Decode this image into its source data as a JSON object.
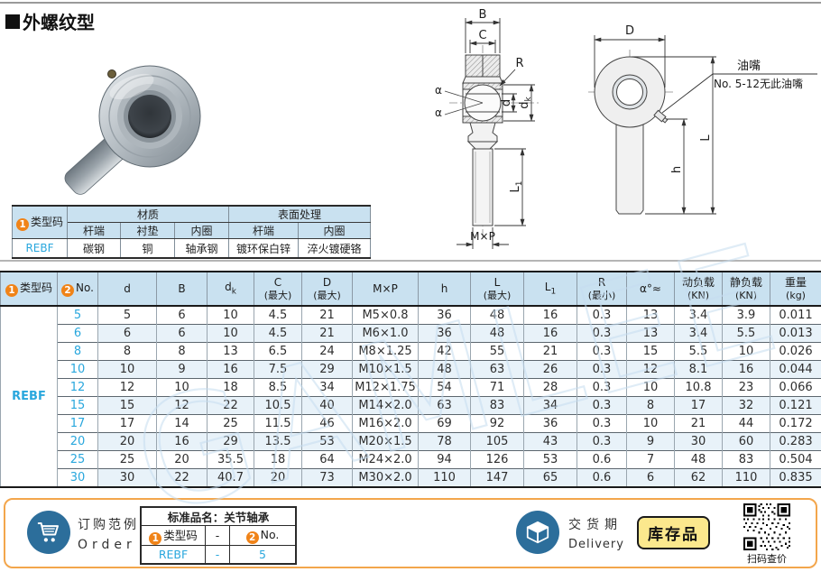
{
  "title": "外螺纹型",
  "watermark": "GAMLEE",
  "material_table": {
    "badge": "1",
    "type_code_label": "类型码",
    "material_header": "材质",
    "surface_header": "表面处理",
    "sub_headers": [
      "杆端",
      "衬垫",
      "内圈",
      "杆端",
      "内圈"
    ],
    "type_code": "REBF",
    "values": [
      "碳钢",
      "铜",
      "轴承钢",
      "镀环保白锌",
      "淬火镀硬铬"
    ]
  },
  "diagram": {
    "side": {
      "B": "B",
      "C": "C",
      "R": "R",
      "alpha": "α",
      "alpha2": "α",
      "d": "d",
      "dk_main": "d",
      "dk_sub": "k",
      "L1_main": "L",
      "L1_sub": "1",
      "MxP": "M×P"
    },
    "front": {
      "D": "D",
      "h": "h",
      "L": "L",
      "grease_title": "油嘴",
      "grease_note": "No. 5-12无此油嘴"
    }
  },
  "main_table": {
    "type_code": "REBF",
    "headers": [
      {
        "badge": "1",
        "text": "类型码"
      },
      {
        "badge": "2",
        "text": "No."
      },
      {
        "text": "d"
      },
      {
        "text": "B"
      },
      {
        "text": "d",
        "sub": "k"
      },
      {
        "text": "C",
        "line2": "(最大)"
      },
      {
        "text": "D",
        "line2": "(最大)"
      },
      {
        "text": "M×P"
      },
      {
        "text": "h"
      },
      {
        "text": "L",
        "line2": "(最大)"
      },
      {
        "text": "L",
        "sub": "1"
      },
      {
        "text": "R",
        "line2": "(最小)"
      },
      {
        "text": "α°≈"
      },
      {
        "text": "动负载",
        "line2": "(KN)"
      },
      {
        "text": "静负载",
        "line2": "(KN)"
      },
      {
        "text": "重量",
        "line2": "(kg)"
      }
    ],
    "rows": [
      [
        "5",
        "5",
        "6",
        "10",
        "4.5",
        "21",
        "M5×0.8",
        "36",
        "48",
        "16",
        "0.3",
        "13",
        "3.4",
        "3.9",
        "0.011"
      ],
      [
        "6",
        "6",
        "6",
        "10",
        "4.5",
        "21",
        "M6×1.0",
        "36",
        "48",
        "16",
        "0.3",
        "13",
        "3.4",
        "5.5",
        "0.013"
      ],
      [
        "8",
        "8",
        "8",
        "13",
        "6.5",
        "24",
        "M8×1.25",
        "42",
        "55",
        "21",
        "0.3",
        "15",
        "5.5",
        "10",
        "0.026"
      ],
      [
        "10",
        "10",
        "9",
        "16",
        "7.5",
        "29",
        "M10×1.5",
        "48",
        "63",
        "26",
        "0.3",
        "12",
        "8.1",
        "16",
        "0.044"
      ],
      [
        "12",
        "12",
        "10",
        "18",
        "8.5",
        "34",
        "M12×1.75",
        "54",
        "71",
        "28",
        "0.3",
        "10",
        "10.8",
        "23",
        "0.066"
      ],
      [
        "15",
        "15",
        "12",
        "22",
        "10.5",
        "40",
        "M14×2.0",
        "63",
        "83",
        "34",
        "0.3",
        "8",
        "17",
        "32",
        "0.121"
      ],
      [
        "17",
        "17",
        "14",
        "25",
        "11.5",
        "46",
        "M16×2.0",
        "69",
        "92",
        "36",
        "0.3",
        "10",
        "21",
        "44",
        "0.172"
      ],
      [
        "20",
        "20",
        "16",
        "29",
        "13.5",
        "53",
        "M20×1.5",
        "78",
        "105",
        "43",
        "0.3",
        "9",
        "30",
        "60",
        "0.283"
      ],
      [
        "25",
        "25",
        "20",
        "35.5",
        "18",
        "64",
        "M24×2.0",
        "94",
        "126",
        "53",
        "0.6",
        "7",
        "48",
        "83",
        "0.504"
      ],
      [
        "30",
        "30",
        "22",
        "40.7",
        "20",
        "73",
        "M30×2.0",
        "110",
        "147",
        "65",
        "0.6",
        "6",
        "62",
        "110",
        "0.835"
      ]
    ]
  },
  "footer": {
    "order_cn": "订购范例",
    "order_en": "Order",
    "sample": {
      "title": "标准品名：关节轴承",
      "badge1": "1",
      "col1": "类型码",
      "dash": "-",
      "badge2": "2",
      "col2": "No.",
      "code": "REBF",
      "dash2": "-",
      "no": "5"
    },
    "delivery_cn": "交货期",
    "delivery_en": "Delivery",
    "stock_badge": "库存品",
    "qr_caption": "扫码查价"
  },
  "colors": {
    "link_blue": "#29a7dd",
    "header_blue": "#c9e1f0",
    "row_alt_blue": "#e8f2f9",
    "badge_orange": "#f08318",
    "footer_border_orange": "#f3a64c",
    "stock_yellow": "#fbe88d",
    "icon_blue": "#2c6e9b"
  }
}
